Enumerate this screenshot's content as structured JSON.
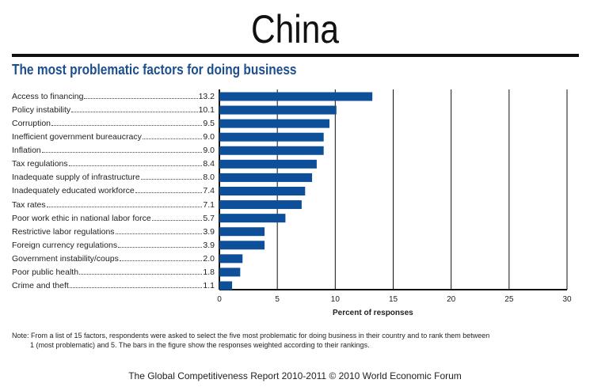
{
  "country": "China",
  "note_line1": "Note: From a list of 15 factors, respondents were asked to select the five most problematic for doing business in their country and to rank them between",
  "note_line2": "1 (most problematic) and 5. The bars in the figure show the responses weighted according to their rankings.",
  "footer": "The Global Competitiveness Report 2010-2011 © 2010 World Economic Forum",
  "colors": {
    "bar": "#0d4f99",
    "title": "#1d4f8c"
  },
  "chart_data": {
    "type": "bar",
    "orientation": "horizontal",
    "title": "The most problematic factors for doing business",
    "xlabel": "Percent of responses",
    "xlim": [
      0,
      30
    ],
    "xticks": [
      "0",
      "5",
      "10",
      "15",
      "20",
      "25",
      "30"
    ],
    "grid": true,
    "categories": [
      "Access to financing",
      "Policy instability",
      "Corruption",
      "Inefficient government bureaucracy",
      "Inflation",
      "Tax regulations",
      "Inadequate supply of infrastructure",
      "Inadequately educated workforce",
      "Tax rates",
      "Poor work ethic in national labor force",
      "Restrictive labor regulations",
      "Foreign currency regulations",
      "Government instability/coups",
      "Poor public health",
      "Crime and theft"
    ],
    "values": [
      13.2,
      10.1,
      9.5,
      9.0,
      9.0,
      8.4,
      8.0,
      7.4,
      7.1,
      5.7,
      3.9,
      3.9,
      2.0,
      1.8,
      1.1
    ],
    "value_labels": [
      "13.2",
      "10.1",
      "9.5",
      "9.0",
      "9.0",
      "8.4",
      "8.0",
      "7.4",
      "7.1",
      "5.7",
      "3.9",
      "3.9",
      "2.0",
      "1.8",
      "1.1"
    ]
  }
}
